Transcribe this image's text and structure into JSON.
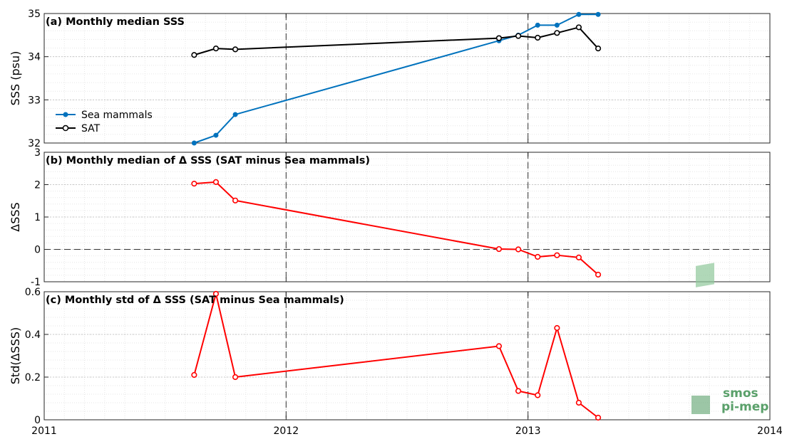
{
  "chart_data": [
    {
      "type": "line",
      "title": "(a) Monthly median SSS",
      "xlabel": "",
      "ylabel": "SSS (psu)",
      "xlim": [
        2011,
        2014
      ],
      "ylim": [
        32,
        35
      ],
      "yticks": [
        32,
        33,
        34,
        35
      ],
      "grid": true,
      "legend": "lower-left",
      "series": [
        {
          "name": "Sea mammals",
          "color": "#0072BD",
          "marker": "filled-dot",
          "x": [
            2011.62,
            2011.71,
            2011.79,
            2012.88,
            2012.96,
            2013.04,
            2013.12,
            2013.21,
            2013.29
          ],
          "y": [
            32.0,
            32.18,
            32.66,
            34.37,
            34.5,
            34.73,
            34.73,
            34.98,
            34.98
          ]
        },
        {
          "name": "SAT",
          "color": "#000000",
          "marker": "open-circle",
          "x": [
            2011.62,
            2011.71,
            2011.79,
            2012.88,
            2012.96,
            2013.04,
            2013.12,
            2013.21,
            2013.29
          ],
          "y": [
            34.04,
            34.19,
            34.17,
            34.43,
            34.48,
            34.44,
            34.55,
            34.68,
            34.19
          ]
        }
      ],
      "vlines": [
        2012,
        2013
      ]
    },
    {
      "type": "line",
      "title": "(b) Monthly median of Δ SSS (SAT minus Sea mammals)",
      "xlabel": "",
      "ylabel": "ΔSSS",
      "xlim": [
        2011,
        2014
      ],
      "ylim": [
        -1,
        3
      ],
      "yticks": [
        -1,
        0,
        1,
        2,
        3
      ],
      "grid": true,
      "series": [
        {
          "color": "#FF0000",
          "marker": "open-circle",
          "x": [
            2011.62,
            2011.71,
            2011.79,
            2012.88,
            2012.96,
            2013.04,
            2013.12,
            2013.21,
            2013.29
          ],
          "y": [
            2.03,
            2.08,
            1.51,
            0.01,
            0.0,
            -0.23,
            -0.18,
            -0.25,
            -0.78
          ]
        }
      ],
      "vlines": [
        2012,
        2013
      ],
      "hlines": [
        0
      ]
    },
    {
      "type": "line",
      "title": "(c) Monthly std of Δ SSS (SAT minus Sea mammals)",
      "xlabel": "",
      "ylabel": "Std(ΔSSS)",
      "xlim": [
        2011,
        2014
      ],
      "ylim": [
        0,
        0.6
      ],
      "yticks": [
        0,
        0.2,
        0.4,
        0.6
      ],
      "xticks": [
        2011,
        2012,
        2013,
        2014
      ],
      "grid": true,
      "series": [
        {
          "color": "#FF0000",
          "marker": "open-circle",
          "x": [
            2011.62,
            2011.71,
            2011.79,
            2012.88,
            2012.96,
            2013.04,
            2013.12,
            2013.21,
            2013.29
          ],
          "y": [
            0.21,
            0.59,
            0.2,
            0.345,
            0.135,
            0.115,
            0.43,
            0.08,
            0.01
          ]
        }
      ],
      "vlines": [
        2012,
        2013
      ]
    }
  ],
  "xtick_labels": [
    "2011",
    "2012",
    "2013",
    "2014"
  ],
  "logo": {
    "line1": "smos",
    "line2": "pi-mep",
    "color": "#5aa06a"
  }
}
